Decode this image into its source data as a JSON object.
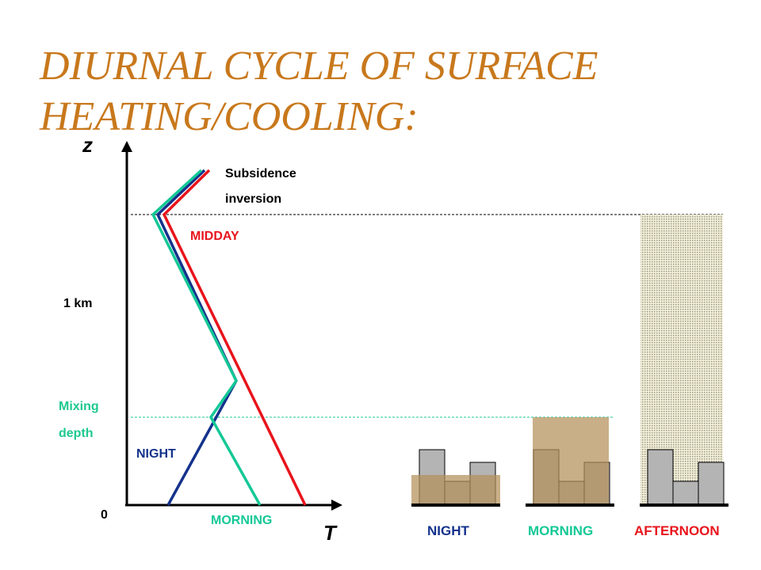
{
  "title_line1": "DIURNAL CYCLE OF SURFACE",
  "title_line2": "HEATING/COOLING:",
  "axes": {
    "y_label": "z",
    "x_label": "T",
    "origin_label": "0",
    "km_label": "1 km"
  },
  "annotations": {
    "subsidence_line1": "Subsidence",
    "subsidence_line2": "inversion",
    "midday": "MIDDAY",
    "night": "NIGHT",
    "morning": "MORNING",
    "mixing_line1": "Mixing",
    "mixing_line2": "depth"
  },
  "panels": {
    "night": "NIGHT",
    "morning": "MORNING",
    "afternoon": "AFTERNOON"
  },
  "colors": {
    "title": "#c8781c",
    "midday": "#e8141c",
    "night": "#14328c",
    "morning": "#14c896",
    "mixing_label": "#1ec890",
    "building": "#b4b4b4",
    "mixed_layer": "#b4905a"
  }
}
